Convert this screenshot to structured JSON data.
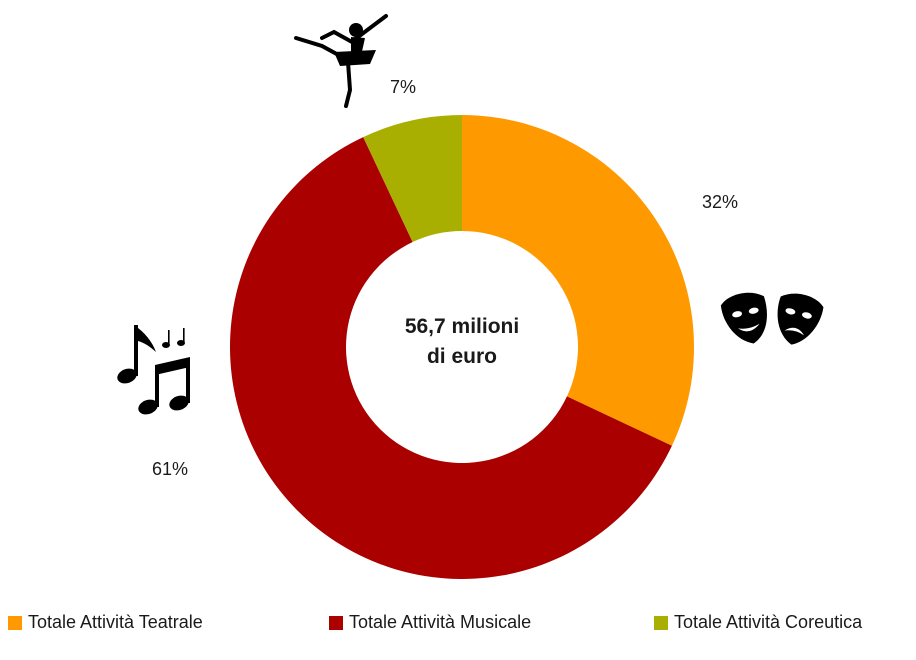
{
  "chart_data": {
    "type": "pie",
    "donut": true,
    "center_label": [
      "56,7 milioni",
      "di euro"
    ],
    "categories": [
      "Totale Attività Teatrale",
      "Totale Attività Musicale",
      "Totale Attività Coreutica"
    ],
    "values": [
      32,
      61,
      7
    ],
    "value_labels": [
      "32%",
      "61%",
      "7%"
    ],
    "colors": [
      "#FF9900",
      "#AA0000",
      "#A9AF00"
    ],
    "icons": [
      "theatre-masks-icon",
      "music-notes-icon",
      "ballet-dancer-icon"
    ],
    "legend_position": "bottom",
    "title": "",
    "xlabel": "",
    "ylabel": ""
  }
}
